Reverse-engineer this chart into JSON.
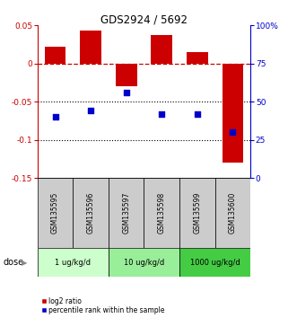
{
  "title": "GDS2924 / 5692",
  "samples": [
    "GSM135595",
    "GSM135596",
    "GSM135597",
    "GSM135598",
    "GSM135599",
    "GSM135600"
  ],
  "log2_ratio": [
    0.022,
    0.043,
    -0.03,
    0.038,
    0.015,
    -0.13
  ],
  "percentile_rank": [
    40,
    44,
    56,
    42,
    42,
    30
  ],
  "bar_color": "#cc0000",
  "dot_color": "#0000cc",
  "ylim_left": [
    -0.15,
    0.05
  ],
  "ylim_right": [
    0,
    100
  ],
  "yticks_left": [
    0.05,
    0,
    -0.05,
    -0.1,
    -0.15
  ],
  "yticks_right": [
    100,
    75,
    50,
    25,
    0
  ],
  "ytick_labels_left": [
    "0.05",
    "0",
    "-0.05",
    "-0.1",
    "-0.15"
  ],
  "ytick_labels_right": [
    "100%",
    "75",
    "50",
    "25",
    "0"
  ],
  "hline_color": "#cc0000",
  "dotted_lines": [
    -0.05,
    -0.1
  ],
  "dose_groups": [
    {
      "label": "1 ug/kg/d",
      "samples": [
        0,
        1
      ],
      "color": "#ccffcc"
    },
    {
      "label": "10 ug/kg/d",
      "samples": [
        2,
        3
      ],
      "color": "#99ee99"
    },
    {
      "label": "1000 ug/kg/d",
      "samples": [
        4,
        5
      ],
      "color": "#44cc44"
    }
  ],
  "dose_label": "dose",
  "legend_red": "log2 ratio",
  "legend_blue": "percentile rank within the sample",
  "gsm_bg_color": "#cccccc",
  "axis_left_color": "#cc0000",
  "axis_right_color": "#0000cc"
}
